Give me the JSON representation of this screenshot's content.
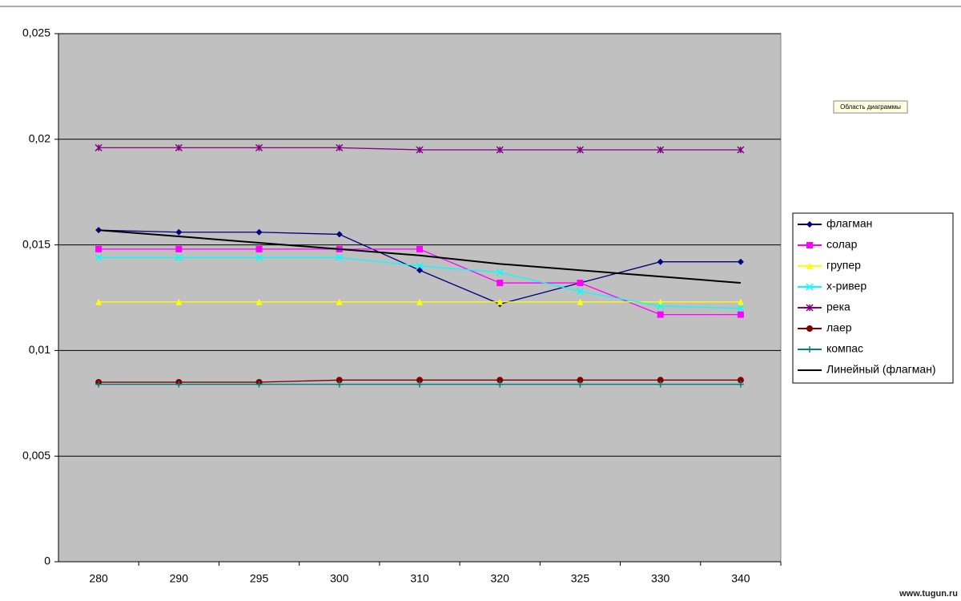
{
  "chart_data": {
    "type": "line",
    "categories": [
      "280",
      "290",
      "295",
      "300",
      "310",
      "320",
      "325",
      "330",
      "340"
    ],
    "ylim": [
      0,
      0.025
    ],
    "yticks": [
      0,
      {
        "value": 0.005,
        "label": "0,005"
      },
      {
        "value": 0.01,
        "label": "0,01"
      },
      {
        "value": 0.015,
        "label": "0,015"
      },
      {
        "value": 0.02,
        "label": "0,02"
      },
      {
        "value": 0.025,
        "label": "0,025"
      }
    ],
    "grid": true,
    "plot_background": "#c0c0c0",
    "legend": "right",
    "series": [
      {
        "name": "флагман",
        "color": "#000080",
        "marker": "diamond",
        "values": [
          0.0157,
          0.0156,
          0.0156,
          0.0155,
          0.0138,
          0.0122,
          0.0132,
          0.0142,
          0.0142
        ]
      },
      {
        "name": "солар",
        "color": "#ff00ff",
        "marker": "square",
        "values": [
          0.0148,
          0.0148,
          0.0148,
          0.0148,
          0.0148,
          0.0132,
          0.0132,
          0.0117,
          0.0117
        ]
      },
      {
        "name": "групер",
        "color": "#ffff00",
        "marker": "triangle",
        "values": [
          0.0123,
          0.0123,
          0.0123,
          0.0123,
          0.0123,
          0.0123,
          0.0123,
          0.0123,
          0.0123
        ]
      },
      {
        "name": "х-ривер",
        "color": "#00ffff",
        "marker": "x",
        "values": [
          0.0144,
          0.0144,
          0.0144,
          0.0144,
          0.014,
          0.0137,
          0.0128,
          0.0121,
          0.012
        ]
      },
      {
        "name": "река",
        "color": "#800080",
        "marker": "star",
        "values": [
          0.0196,
          0.0196,
          0.0196,
          0.0196,
          0.0195,
          0.0195,
          0.0195,
          0.0195,
          0.0195
        ]
      },
      {
        "name": "лаер",
        "color": "#800000",
        "marker": "circle",
        "values": [
          0.0085,
          0.0085,
          0.0085,
          0.0086,
          0.0086,
          0.0086,
          0.0086,
          0.0086,
          0.0086
        ]
      },
      {
        "name": "компас",
        "color": "#008080",
        "marker": "plus",
        "values": [
          0.0084,
          0.0084,
          0.0084,
          0.0084,
          0.0084,
          0.0084,
          0.0084,
          0.0084,
          0.0084
        ]
      },
      {
        "name": "Линейный (флагман)",
        "color": "#000000",
        "marker": "none",
        "values": [
          0.0157,
          0.0154,
          0.0151,
          0.0148,
          0.0145,
          0.0141,
          0.0138,
          0.0135,
          0.0132
        ]
      }
    ]
  },
  "tooltip": "Область диаграммы",
  "watermark": "www.tugun.ru"
}
